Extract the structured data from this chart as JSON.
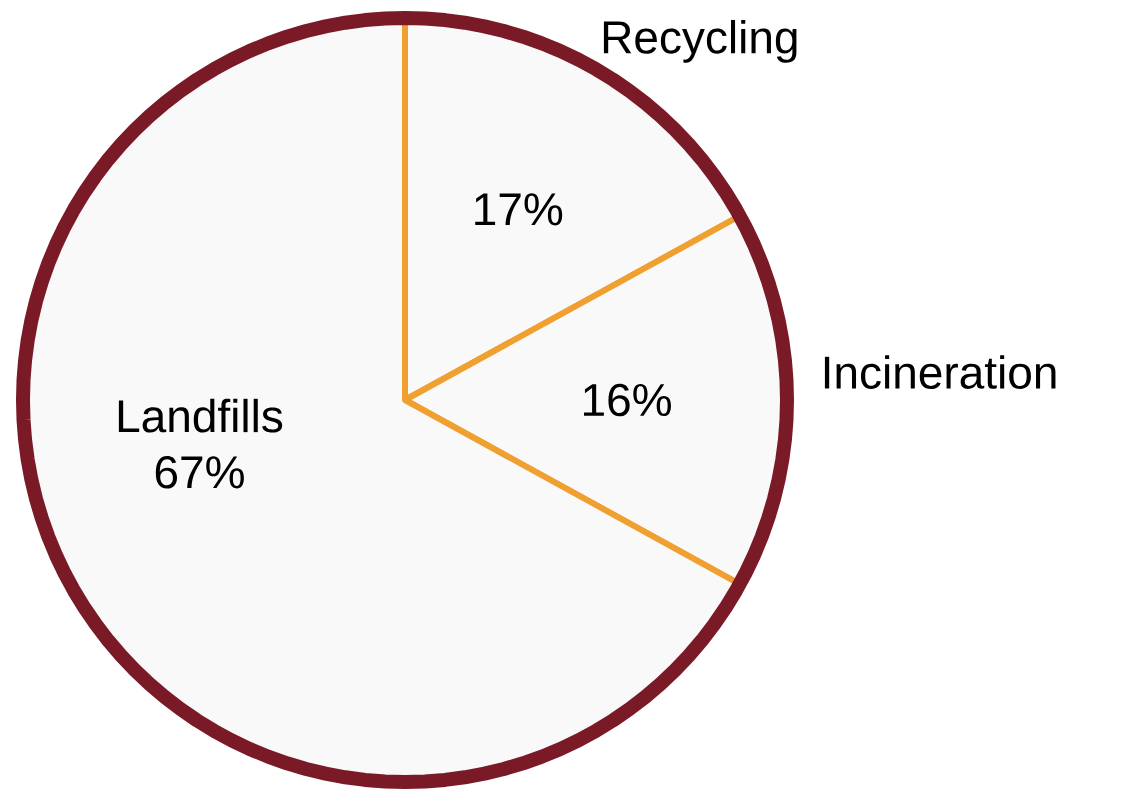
{
  "chart_data": {
    "type": "pie",
    "categories": [
      "Recycling",
      "Incineration",
      "Landfills"
    ],
    "values": [
      17,
      16,
      67
    ],
    "colors": [
      "#f9f9f9",
      "#f9f9f9",
      "#f9f9f9"
    ],
    "value_labels": [
      "17%",
      "16%",
      "67%"
    ],
    "legend": false
  }
}
